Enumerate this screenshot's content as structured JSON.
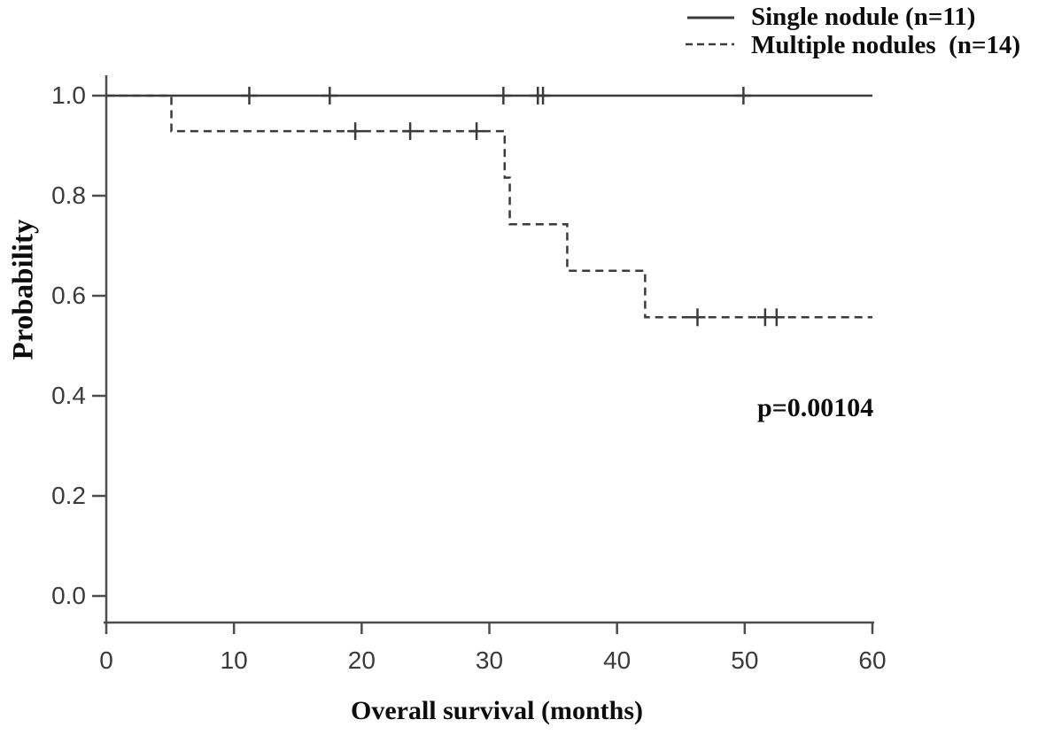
{
  "figure": {
    "background": "#ffffff"
  },
  "chart_data": {
    "type": "line",
    "variant": "kaplan_meier_step",
    "title": "",
    "xlabel": "Overall survival (months)",
    "ylabel": "Probability",
    "annotation": "p=0.00104",
    "xlim": [
      0,
      60
    ],
    "ylim": [
      0,
      1.04
    ],
    "grid": false,
    "x_ticks": [
      {
        "v": 0,
        "label": "0"
      },
      {
        "v": 10,
        "label": "10"
      },
      {
        "v": 20,
        "label": "20"
      },
      {
        "v": 30,
        "label": "30"
      },
      {
        "v": 40,
        "label": "40"
      },
      {
        "v": 50,
        "label": "50"
      },
      {
        "v": 60,
        "label": "60"
      }
    ],
    "y_ticks": [
      {
        "v": 0.0,
        "label": "0.0"
      },
      {
        "v": 0.2,
        "label": "0.2"
      },
      {
        "v": 0.4,
        "label": "0.4"
      },
      {
        "v": 0.6,
        "label": "0.6"
      },
      {
        "v": 0.8,
        "label": "0.8"
      },
      {
        "v": 1.0,
        "label": "1.0"
      }
    ],
    "legend_position": "top-right",
    "series": [
      {
        "name": "Single nodule (n=11)",
        "line_style": "solid",
        "steps": [
          [
            0,
            1.0
          ],
          [
            60,
            1.0
          ]
        ],
        "censor_marks": [
          [
            11.2,
            1.0
          ],
          [
            17.5,
            1.0
          ],
          [
            31.1,
            1.0
          ],
          [
            33.8,
            1.0
          ],
          [
            34.2,
            1.0
          ],
          [
            49.9,
            1.0
          ]
        ]
      },
      {
        "name": "Multiple nodules  (n=14)",
        "line_style": "dashed",
        "steps": [
          [
            0,
            1.0
          ],
          [
            5.1,
            1.0
          ],
          [
            5.1,
            0.929
          ],
          [
            31.2,
            0.929
          ],
          [
            31.2,
            0.836
          ],
          [
            31.6,
            0.836
          ],
          [
            31.6,
            0.743
          ],
          [
            36.1,
            0.743
          ],
          [
            36.1,
            0.65
          ],
          [
            42.2,
            0.65
          ],
          [
            42.2,
            0.557
          ],
          [
            60,
            0.557
          ]
        ],
        "censor_marks": [
          [
            19.5,
            0.929
          ],
          [
            23.8,
            0.929
          ],
          [
            29.0,
            0.929
          ],
          [
            46.3,
            0.557
          ],
          [
            51.6,
            0.557
          ],
          [
            52.5,
            0.557
          ]
        ]
      }
    ],
    "colors": {
      "curve": "#3b3b3b",
      "axis": "#4c4c4c",
      "tick_label": "#3b3b3b",
      "text": "#0d0d0d"
    }
  }
}
